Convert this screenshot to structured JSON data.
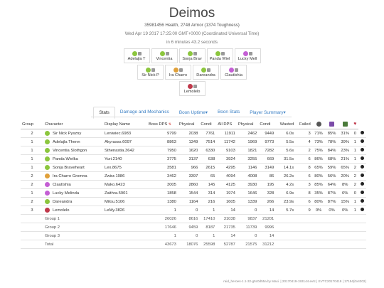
{
  "header": {
    "title": "Deimos",
    "stats_line": "35981456 Health, 2748 Armor (1374 Toughness)",
    "date_line": "Wed Apr 19 2017 17:25:00 GMT+0000 (Coordinated Universal Time)",
    "duration_line": "in 6 minutes 43.2 seconds"
  },
  "players": [
    [
      {
        "name": "Adelajla T",
        "icon": "mesmer-icon",
        "color": "#8cc63e"
      },
      {
        "name": "Vincentia",
        "icon": "ranger-icon",
        "color": "#8cc63e"
      },
      {
        "name": "Sonja Brav",
        "icon": "ranger-icon",
        "color": "#8cc63e"
      },
      {
        "name": "Panda Wiel",
        "icon": "ranger-icon",
        "color": "#8cc63e"
      },
      {
        "name": "Lucky Mell",
        "icon": "mesmer-icon",
        "color": "#c45fd4"
      }
    ],
    [
      {
        "name": "Sir Nick P",
        "icon": "ranger-icon",
        "color": "#8cc63e"
      },
      {
        "name": "Ira Charro",
        "icon": "guardian-icon",
        "color": "#e0a03a"
      },
      {
        "name": "Dareandra",
        "icon": "ranger-icon",
        "color": "#8cc63e"
      },
      {
        "name": "Clautíshia",
        "icon": "mesmer-icon",
        "color": "#c45fd4"
      }
    ],
    [
      {
        "name": "Lemolelo",
        "icon": "warrior-icon",
        "color": "#c0394b"
      }
    ]
  ],
  "tabs": [
    {
      "label": "Stats",
      "active": true
    },
    {
      "label": "Damage and Mechanics",
      "active": false
    },
    {
      "label": "Boon Uptime▾",
      "active": false
    },
    {
      "label": "Boon Stats",
      "active": false
    },
    {
      "label": "Player Summary▾",
      "active": false
    }
  ],
  "table": {
    "headers": [
      "Group",
      "Character",
      "Display Name",
      "Boss DPS",
      "Physical",
      "Condi",
      "All DPS",
      "Physical",
      "Condi",
      "Wasted",
      "Failed"
    ],
    "icon_headers": [
      {
        "icon": "gear-icon",
        "color": "#555"
      },
      {
        "icon": "purple-skill-icon",
        "color": "#7b4aa8"
      },
      {
        "icon": "stack-icon",
        "color": "#4a7a3a"
      },
      {
        "icon": "heart-icon",
        "color": "#c0394b"
      }
    ],
    "rows": [
      {
        "group": "2",
        "color": "#8cc63e",
        "character": "Sir Nick Pyszny",
        "display": "Leniwiec.6983",
        "boss_dps": "9799",
        "phys": "2038",
        "condi": "7761",
        "all_dps": "11911",
        "all_phys": "2462",
        "all_condi": "9449",
        "wasted": "6.0s",
        "failed": "3",
        "p1": "71%",
        "p2": "85%",
        "p3": "31%",
        "p4": "0"
      },
      {
        "group": "1",
        "color": "#8cc63e",
        "character": "Adelajla Thenn",
        "display": "Akyrasss.6097",
        "boss_dps": "8863",
        "phys": "1349",
        "condi": "7514",
        "all_dps": "11742",
        "all_phys": "1969",
        "all_condi": "9773",
        "wasted": "5.5s",
        "failed": "4",
        "p1": "73%",
        "p2": "78%",
        "p3": "39%",
        "p4": "1"
      },
      {
        "group": "1",
        "color": "#8cc63e",
        "character": "Vincentia Slothgon",
        "display": "Sthenastia.3642",
        "boss_dps": "7950",
        "phys": "1620",
        "condi": "6330",
        "all_dps": "9103",
        "all_phys": "1821",
        "all_condi": "7282",
        "wasted": "5.6s",
        "failed": "2",
        "p1": "75%",
        "p2": "84%",
        "p3": "23%",
        "p4": "1"
      },
      {
        "group": "1",
        "color": "#8cc63e",
        "character": "Panda Wielka",
        "display": "Yuri.2140",
        "boss_dps": "3775",
        "phys": "3137",
        "condi": "638",
        "all_dps": "3924",
        "all_phys": "3255",
        "all_condi": "669",
        "wasted": "31.5s",
        "failed": "6",
        "p1": "86%",
        "p2": "68%",
        "p3": "21%",
        "p4": "1"
      },
      {
        "group": "1",
        "color": "#8cc63e",
        "character": "Sonja Braveheart",
        "display": "Lex.8675",
        "boss_dps": "3581",
        "phys": "966",
        "condi": "2615",
        "all_dps": "4295",
        "all_phys": "1146",
        "all_condi": "3149",
        "wasted": "14.1s",
        "failed": "8",
        "p1": "65%",
        "p2": "59%",
        "p3": "65%",
        "p4": "2"
      },
      {
        "group": "2",
        "color": "#e0a03a",
        "character": "Ira Charro Gromna",
        "display": "Zwirz.1986",
        "boss_dps": "3462",
        "phys": "3397",
        "condi": "65",
        "all_dps": "4094",
        "all_phys": "4008",
        "all_condi": "86",
        "wasted": "26.2s",
        "failed": "6",
        "p1": "80%",
        "p2": "56%",
        "p3": "20%",
        "p4": "2"
      },
      {
        "group": "2",
        "color": "#c45fd4",
        "character": "Clautíshia",
        "display": "Mako.6423",
        "boss_dps": "3005",
        "phys": "2860",
        "condi": "145",
        "all_dps": "4125",
        "all_phys": "3930",
        "all_condi": "195",
        "wasted": "4.2s",
        "failed": "3",
        "p1": "85%",
        "p2": "64%",
        "p3": "8%",
        "p4": "2"
      },
      {
        "group": "1",
        "color": "#c45fd4",
        "character": "Lucky Melinda",
        "display": "Zaithra.5901",
        "boss_dps": "1858",
        "phys": "1544",
        "condi": "314",
        "all_dps": "1974",
        "all_phys": "1646",
        "all_condi": "328",
        "wasted": "6.9s",
        "failed": "8",
        "p1": "35%",
        "p2": "87%",
        "p3": "6%",
        "p4": "0"
      },
      {
        "group": "2",
        "color": "#8cc63e",
        "character": "Dareandra",
        "display": "Milou.5106",
        "boss_dps": "1380",
        "phys": "1164",
        "condi": "216",
        "all_dps": "1605",
        "all_phys": "1339",
        "all_condi": "266",
        "wasted": "23.9s",
        "failed": "6",
        "p1": "80%",
        "p2": "87%",
        "p3": "15%",
        "p4": "1"
      },
      {
        "group": "3",
        "color": "#c0394b",
        "character": "Lemolelo",
        "display": "LeMy.3826",
        "boss_dps": "1",
        "phys": "0",
        "condi": "1",
        "all_dps": "14",
        "all_phys": "0",
        "all_condi": "14",
        "wasted": "5.7s",
        "failed": "9",
        "p1": "0%",
        "p2": "0%",
        "p3": "0%",
        "p4": "1"
      }
    ],
    "groups": [
      {
        "label": "Group 1",
        "boss_dps": "26026",
        "phys": "8616",
        "condi": "17410",
        "all_dps": "31038",
        "all_phys": "9837",
        "all_condi": "21201"
      },
      {
        "label": "Group 2",
        "boss_dps": "17646",
        "phys": "9459",
        "condi": "8187",
        "all_dps": "21735",
        "all_phys": "11739",
        "all_condi": "9996"
      },
      {
        "label": "Group 3",
        "boss_dps": "1",
        "phys": "0",
        "condi": "1",
        "all_dps": "14",
        "all_phys": "0",
        "all_condi": "14"
      },
      {
        "label": "Total",
        "boss_dps": "43673",
        "phys": "18076",
        "condi": "25598",
        "all_dps": "52787",
        "all_phys": "21575",
        "all_condi": "31212"
      }
    ]
  },
  "footer": "raid_heroes-1.1-32-g5c0d55a by Maxi. | 20170419-193144.evtc | EVTC20170419 | 17154(0x4302)"
}
